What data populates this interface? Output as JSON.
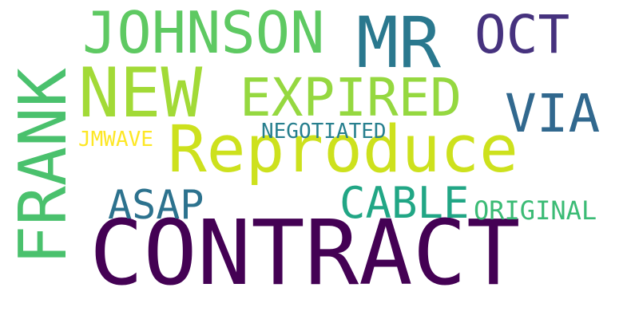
{
  "words": [
    {
      "text": "CONTRACT",
      "color": "#440154",
      "orientation": "horizontal"
    },
    {
      "text": "Reproduce",
      "color": "#cde11d",
      "orientation": "horizontal"
    },
    {
      "text": "FRANK",
      "color": "#4ac16d",
      "orientation": "vertical"
    },
    {
      "text": "NEW",
      "color": "#a2da37",
      "orientation": "horizontal"
    },
    {
      "text": "JOHNSON",
      "color": "#5ec962",
      "orientation": "horizontal"
    },
    {
      "text": "MR",
      "color": "#2a788e",
      "orientation": "horizontal"
    },
    {
      "text": "EXPIRED",
      "color": "#95d840",
      "orientation": "horizontal"
    },
    {
      "text": "OCT",
      "color": "#46327e",
      "orientation": "horizontal"
    },
    {
      "text": "VIA",
      "color": "#31688e",
      "orientation": "horizontal"
    },
    {
      "text": "ASAP",
      "color": "#2c728e",
      "orientation": "horizontal"
    },
    {
      "text": "CABLE",
      "color": "#21a685",
      "orientation": "horizontal"
    },
    {
      "text": "ORIGINAL",
      "color": "#3bbb75",
      "orientation": "horizontal"
    },
    {
      "text": "NEGOTIATED",
      "color": "#277f8e",
      "orientation": "horizontal"
    },
    {
      "text": "JMWAVE",
      "color": "#fde725",
      "orientation": "horizontal"
    }
  ]
}
